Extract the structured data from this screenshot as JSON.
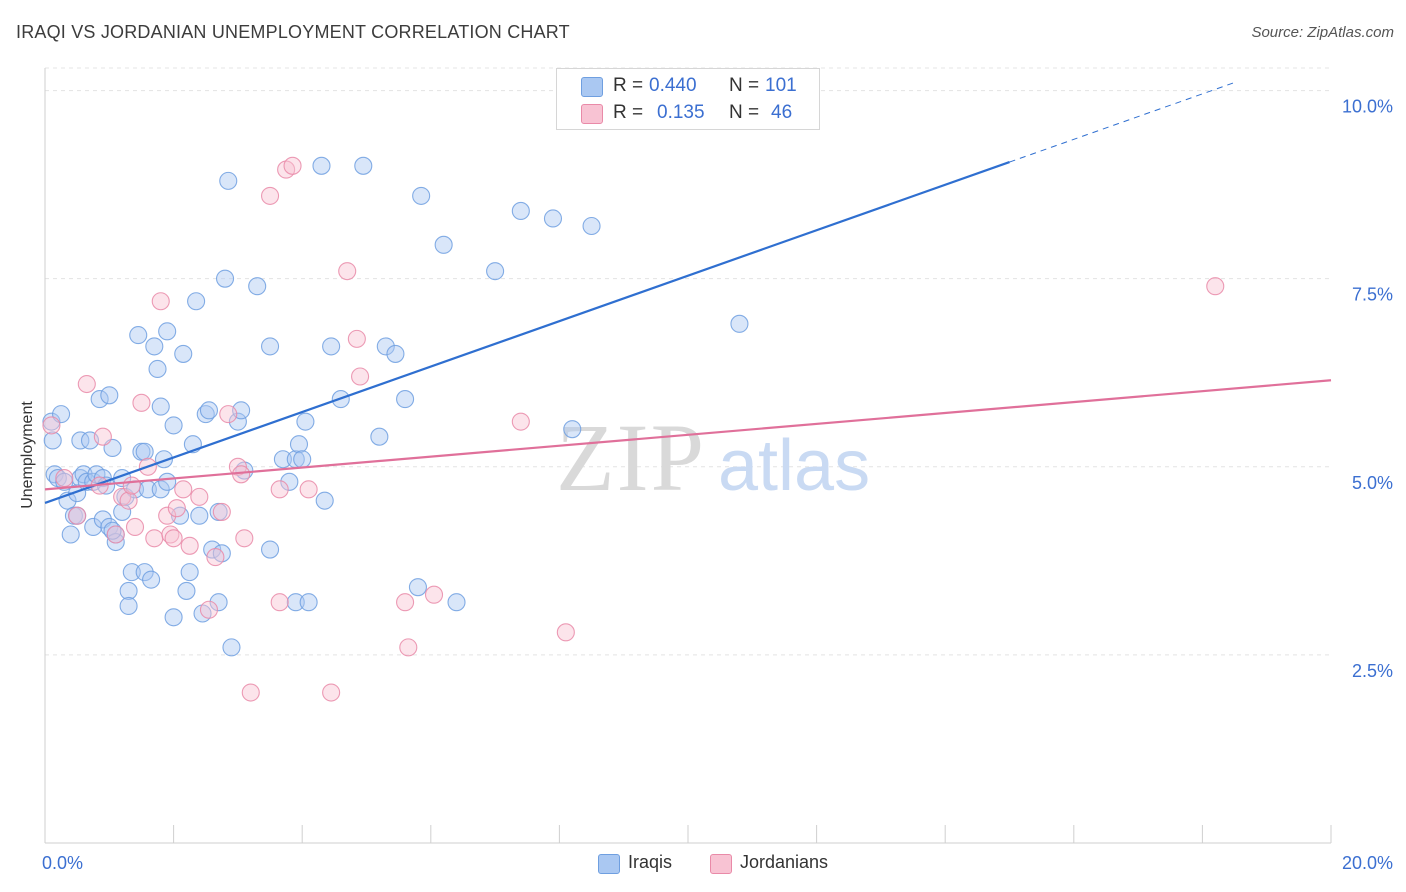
{
  "title": "IRAQI VS JORDANIAN UNEMPLOYMENT CORRELATION CHART",
  "source": "Source: ZipAtlas.com",
  "watermark": {
    "zip": "ZIP",
    "atlas": "atlas"
  },
  "legend": {
    "r_label": "R =",
    "n_label": "N =",
    "rows": [
      {
        "r": "0.440",
        "n": "101",
        "color": "#aac8f2",
        "border": "#6f9fe0"
      },
      {
        "r": "0.135",
        "n": "46",
        "color": "#f8c3d3",
        "border": "#e98aa8"
      }
    ]
  },
  "bottom_legend": [
    {
      "name": "Iraqis",
      "color": "#aac8f2",
      "border": "#6f9fe0"
    },
    {
      "name": "Jordanians",
      "color": "#f8c3d3",
      "border": "#e98aa8"
    }
  ],
  "chart_data": {
    "type": "scatter",
    "title": "IRAQI VS JORDANIAN UNEMPLOYMENT CORRELATION CHART",
    "ylabel": "Unemployment",
    "xlim": [
      0,
      20
    ],
    "ylim": [
      0,
      10.3
    ],
    "x_ticks": [
      0,
      2,
      4,
      6,
      8,
      10,
      12,
      14,
      16,
      18,
      20
    ],
    "x_tick_labels": [
      {
        "value": 0,
        "label": "0.0%"
      },
      {
        "value": 20,
        "label": "20.0%"
      }
    ],
    "y_ticks": [
      {
        "value": 2.5,
        "label": "2.5%"
      },
      {
        "value": 5.0,
        "label": "5.0%"
      },
      {
        "value": 7.5,
        "label": "7.5%"
      },
      {
        "value": 10.0,
        "label": "10.0%"
      }
    ],
    "grid": "horizontal dashed",
    "series": [
      {
        "name": "Iraqis",
        "color": "#6f9fe0",
        "fill": "#aac8f2",
        "trend": {
          "x0": 0,
          "y0": 4.52,
          "x1": 15,
          "y1": 9.05,
          "dash_to_x": 18.5,
          "color": "#2f6fd0"
        },
        "points": [
          [
            0.1,
            5.6
          ],
          [
            0.12,
            5.35
          ],
          [
            0.15,
            4.9
          ],
          [
            0.2,
            4.85
          ],
          [
            0.25,
            5.7
          ],
          [
            0.3,
            4.8
          ],
          [
            0.35,
            4.55
          ],
          [
            0.4,
            4.1
          ],
          [
            0.45,
            4.35
          ],
          [
            0.5,
            4.65
          ],
          [
            0.55,
            4.85
          ],
          [
            0.5,
            4.35
          ],
          [
            0.6,
            4.9
          ],
          [
            0.55,
            5.35
          ],
          [
            0.65,
            4.8
          ],
          [
            0.7,
            5.35
          ],
          [
            0.75,
            4.8
          ],
          [
            0.8,
            4.9
          ],
          [
            0.75,
            4.2
          ],
          [
            0.85,
            5.9
          ],
          [
            0.9,
            4.85
          ],
          [
            0.95,
            4.75
          ],
          [
            0.9,
            4.3
          ],
          [
            1.0,
            5.95
          ],
          [
            1.05,
            5.25
          ],
          [
            1.0,
            4.2
          ],
          [
            1.1,
            4.1
          ],
          [
            1.1,
            4.0
          ],
          [
            1.05,
            4.15
          ],
          [
            1.2,
            4.4
          ],
          [
            1.2,
            4.85
          ],
          [
            1.25,
            4.6
          ],
          [
            1.3,
            3.35
          ],
          [
            1.3,
            3.15
          ],
          [
            1.35,
            3.6
          ],
          [
            1.4,
            4.7
          ],
          [
            1.45,
            6.75
          ],
          [
            1.5,
            5.2
          ],
          [
            1.55,
            3.6
          ],
          [
            1.55,
            5.2
          ],
          [
            1.6,
            4.7
          ],
          [
            1.65,
            3.5
          ],
          [
            1.7,
            6.6
          ],
          [
            1.75,
            6.3
          ],
          [
            1.8,
            5.8
          ],
          [
            1.8,
            4.7
          ],
          [
            1.85,
            5.1
          ],
          [
            1.9,
            4.8
          ],
          [
            1.9,
            6.8
          ],
          [
            2.0,
            5.55
          ],
          [
            2.0,
            3.0
          ],
          [
            2.1,
            4.35
          ],
          [
            2.15,
            6.5
          ],
          [
            2.2,
            3.35
          ],
          [
            2.25,
            3.6
          ],
          [
            2.3,
            5.3
          ],
          [
            2.35,
            7.2
          ],
          [
            2.4,
            4.35
          ],
          [
            2.45,
            3.05
          ],
          [
            2.5,
            5.7
          ],
          [
            2.55,
            5.75
          ],
          [
            2.6,
            3.9
          ],
          [
            2.7,
            3.2
          ],
          [
            2.7,
            4.4
          ],
          [
            2.75,
            3.85
          ],
          [
            2.8,
            7.5
          ],
          [
            2.85,
            8.8
          ],
          [
            2.9,
            2.6
          ],
          [
            3.0,
            5.6
          ],
          [
            3.05,
            5.75
          ],
          [
            3.1,
            4.95
          ],
          [
            3.3,
            7.4
          ],
          [
            3.5,
            6.6
          ],
          [
            3.5,
            3.9
          ],
          [
            3.7,
            5.1
          ],
          [
            3.8,
            4.8
          ],
          [
            3.9,
            5.1
          ],
          [
            3.9,
            3.2
          ],
          [
            3.95,
            5.3
          ],
          [
            4.0,
            5.1
          ],
          [
            4.05,
            5.6
          ],
          [
            4.1,
            3.2
          ],
          [
            4.3,
            9.0
          ],
          [
            4.35,
            4.55
          ],
          [
            4.45,
            6.6
          ],
          [
            4.6,
            5.9
          ],
          [
            4.95,
            9.0
          ],
          [
            5.2,
            5.4
          ],
          [
            5.3,
            6.6
          ],
          [
            5.45,
            6.5
          ],
          [
            5.6,
            5.9
          ],
          [
            5.8,
            3.4
          ],
          [
            5.85,
            8.6
          ],
          [
            6.2,
            7.95
          ],
          [
            6.4,
            3.2
          ],
          [
            7.0,
            7.6
          ],
          [
            7.4,
            8.4
          ],
          [
            7.9,
            8.3
          ],
          [
            8.2,
            5.5
          ],
          [
            8.5,
            8.2
          ],
          [
            10.8,
            6.9
          ]
        ]
      },
      {
        "name": "Jordanians",
        "color": "#e98aa8",
        "fill": "#f8c3d3",
        "trend": {
          "x0": 0,
          "y0": 4.7,
          "x1": 20,
          "y1": 6.15,
          "color": "#e0709a"
        },
        "points": [
          [
            0.1,
            5.55
          ],
          [
            0.3,
            4.85
          ],
          [
            0.5,
            4.35
          ],
          [
            0.65,
            6.1
          ],
          [
            0.85,
            4.75
          ],
          [
            0.9,
            5.4
          ],
          [
            1.1,
            4.1
          ],
          [
            1.2,
            4.6
          ],
          [
            1.3,
            4.55
          ],
          [
            1.35,
            4.75
          ],
          [
            1.5,
            5.85
          ],
          [
            1.6,
            5.0
          ],
          [
            1.7,
            4.05
          ],
          [
            1.8,
            7.2
          ],
          [
            1.9,
            4.35
          ],
          [
            1.95,
            4.1
          ],
          [
            2.05,
            4.45
          ],
          [
            2.15,
            4.7
          ],
          [
            2.25,
            3.95
          ],
          [
            2.4,
            4.6
          ],
          [
            2.55,
            3.1
          ],
          [
            2.65,
            3.8
          ],
          [
            2.75,
            4.4
          ],
          [
            2.85,
            5.7
          ],
          [
            3.0,
            5.0
          ],
          [
            3.05,
            4.9
          ],
          [
            3.1,
            4.05
          ],
          [
            3.2,
            2.0
          ],
          [
            3.5,
            8.6
          ],
          [
            3.65,
            4.7
          ],
          [
            3.65,
            3.2
          ],
          [
            3.75,
            8.95
          ],
          [
            3.85,
            9.0
          ],
          [
            4.1,
            4.7
          ],
          [
            4.45,
            2.0
          ],
          [
            4.7,
            7.6
          ],
          [
            4.85,
            6.7
          ],
          [
            4.9,
            6.2
          ],
          [
            5.6,
            3.2
          ],
          [
            5.65,
            2.6
          ],
          [
            6.05,
            3.3
          ],
          [
            7.4,
            5.6
          ],
          [
            8.1,
            2.8
          ],
          [
            18.2,
            7.4
          ],
          [
            1.4,
            4.2
          ],
          [
            2.0,
            4.05
          ]
        ]
      }
    ]
  }
}
